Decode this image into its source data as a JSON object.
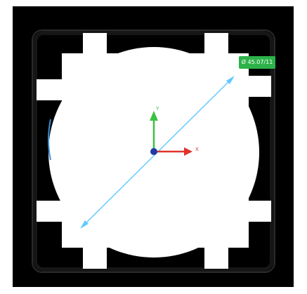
{
  "viewer": {
    "measurement": {
      "label": "Ø 45.07/11",
      "color": "#2db24a",
      "line_color": "#5fc8ff"
    },
    "axes": {
      "x_label": "X",
      "y_label": "Y",
      "x_color": "#e0332c",
      "y_color": "#3cc142",
      "origin_color": "#1f3aa6"
    },
    "background_color": "#000000",
    "part_color": "#ffffff"
  }
}
